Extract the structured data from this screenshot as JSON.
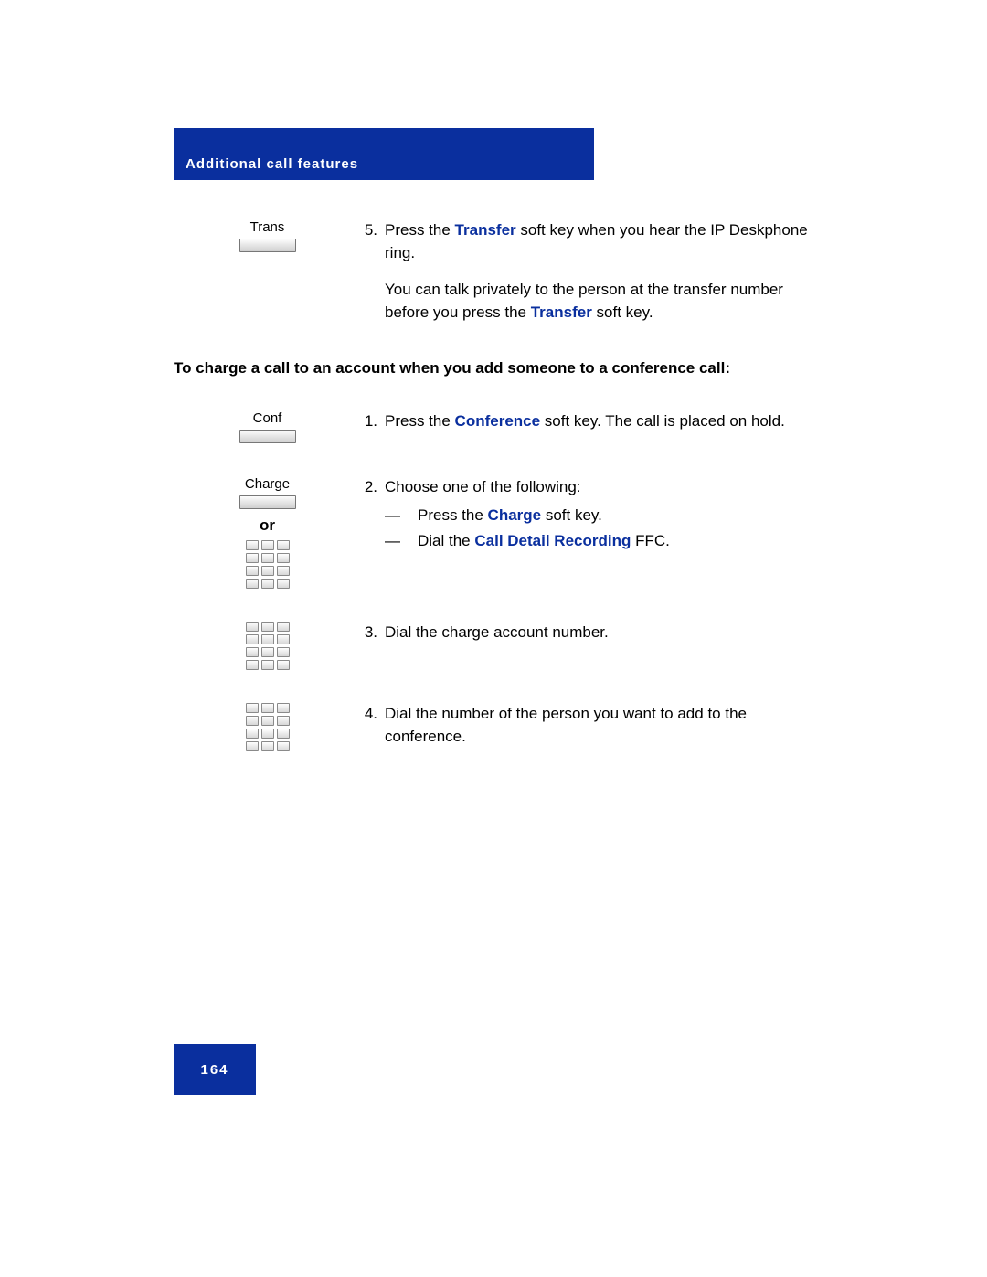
{
  "colors": {
    "blue_bar": "#0a2f9e",
    "link_blue": "#0a2f9e",
    "text": "#000000",
    "bg": "#ffffff"
  },
  "header": {
    "title": "Additional call features"
  },
  "footer": {
    "page_number": "164"
  },
  "section1": {
    "softkey_label": "Trans",
    "step5_num": "5.",
    "step5_pre": "Press the ",
    "step5_link": "Transfer",
    "step5_post": " soft key when you hear the IP Deskphone ring.",
    "para2_pre": "You can talk privately to the person at the transfer number before you press the ",
    "para2_link": "Transfer",
    "para2_post": " soft key."
  },
  "heading": "To charge a call to an account when you add someone to a conference call:",
  "section2": {
    "step1": {
      "softkey_label": "Conf",
      "num": "1.",
      "pre": "Press the ",
      "link": "Conference",
      "post": " soft key. The call is placed on hold."
    },
    "step2": {
      "softkey_label": "Charge",
      "or_label": "or",
      "num": "2.",
      "intro": "Choose one of the following:",
      "dash": "—",
      "opt1_pre": "Press the ",
      "opt1_link": "Charge",
      "opt1_post": " soft key.",
      "opt2_pre": "Dial the ",
      "opt2_link": "Call Detail Recording",
      "opt2_post": " FFC."
    },
    "step3": {
      "num": "3.",
      "text": "Dial the charge account number."
    },
    "step4": {
      "num": "4.",
      "text": "Dial the number of the person you want to add to the conference."
    }
  }
}
